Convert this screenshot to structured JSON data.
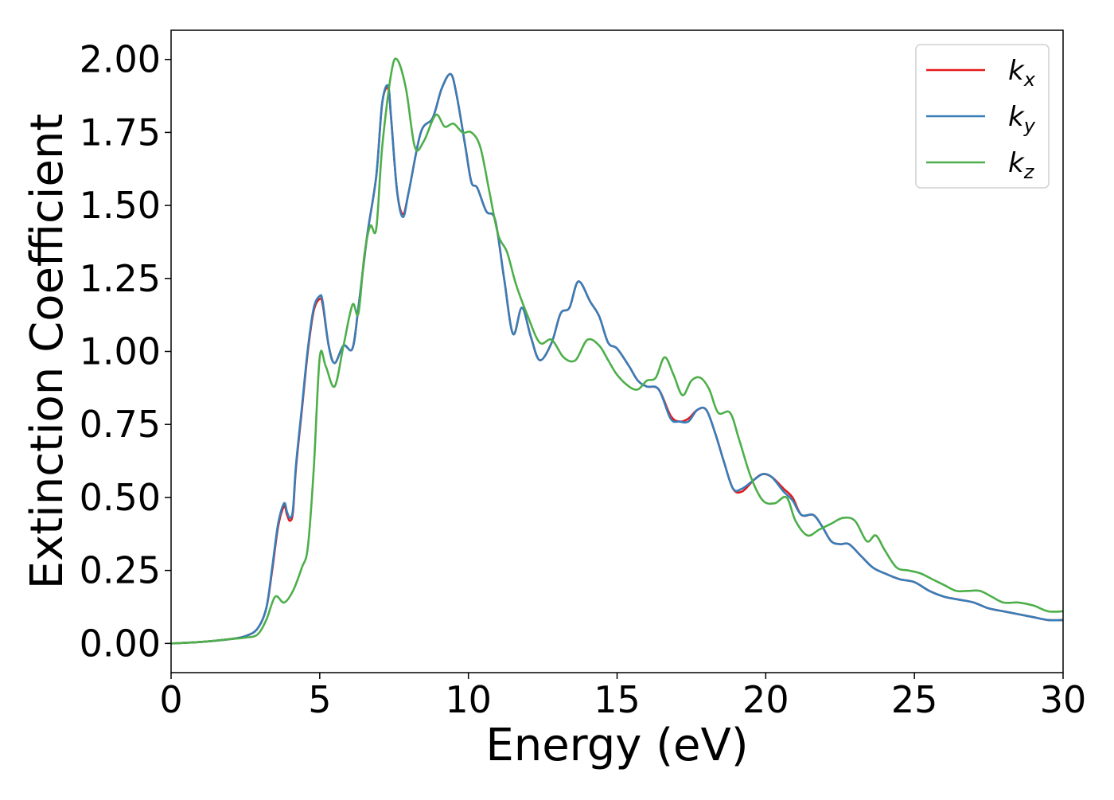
{
  "chart_data": {
    "type": "line",
    "title": "",
    "xlabel": "Energy (eV)",
    "ylabel": "Extinction Coefficient",
    "xlim": [
      0,
      30
    ],
    "ylim": [
      -0.1,
      2.1
    ],
    "xticks": [
      0,
      5,
      10,
      15,
      20,
      25,
      30
    ],
    "xtick_labels": [
      "0",
      "5",
      "10",
      "15",
      "20",
      "25",
      "30"
    ],
    "yticks": [
      0.0,
      0.25,
      0.5,
      0.75,
      1.0,
      1.25,
      1.5,
      1.75,
      2.0
    ],
    "ytick_labels": [
      "0.00",
      "0.25",
      "0.50",
      "0.75",
      "1.00",
      "1.25",
      "1.50",
      "1.75",
      "2.00"
    ],
    "grid": false,
    "legend_position": "top-right",
    "series": [
      {
        "name": "kx",
        "label_base": "k",
        "label_sub": "x",
        "color": "#e41a1c",
        "x": [
          0,
          1,
          2,
          2.5,
          2.9,
          3.2,
          3.4,
          3.6,
          3.8,
          3.9,
          4.0,
          4.1,
          4.2,
          4.4,
          4.6,
          4.8,
          5.0,
          5.1,
          5.3,
          5.5,
          5.8,
          6.1,
          6.3,
          6.6,
          6.9,
          7.1,
          7.3,
          7.4,
          7.6,
          7.8,
          8.0,
          8.4,
          8.8,
          9.1,
          9.4,
          9.6,
          9.9,
          10.1,
          10.3,
          10.6,
          10.9,
          11.2,
          11.5,
          11.8,
          12.1,
          12.4,
          12.8,
          13.1,
          13.4,
          13.7,
          14.1,
          14.4,
          14.7,
          15.0,
          15.4,
          15.7,
          16.0,
          16.4,
          16.8,
          17.1,
          17.4,
          17.7,
          18.0,
          18.3,
          18.6,
          18.9,
          19.2,
          19.6,
          19.9,
          20.2,
          20.6,
          20.9,
          21.2,
          21.6,
          21.9,
          22.2,
          22.5,
          22.8,
          23.2,
          23.6,
          24.0,
          24.5,
          25.0,
          25.5,
          26.0,
          26.5,
          27.0,
          27.5,
          28.0,
          28.5,
          29.0,
          29.5,
          30.0
        ],
        "values": [
          0,
          0.005,
          0.015,
          0.025,
          0.05,
          0.12,
          0.25,
          0.4,
          0.47,
          0.44,
          0.42,
          0.45,
          0.6,
          0.8,
          1.0,
          1.14,
          1.18,
          1.16,
          1.02,
          0.96,
          1.02,
          1.01,
          1.15,
          1.4,
          1.6,
          1.85,
          1.9,
          1.8,
          1.55,
          1.47,
          1.55,
          1.75,
          1.8,
          1.9,
          1.95,
          1.88,
          1.7,
          1.58,
          1.56,
          1.48,
          1.45,
          1.25,
          1.06,
          1.15,
          1.05,
          0.97,
          1.03,
          1.13,
          1.15,
          1.24,
          1.17,
          1.12,
          1.03,
          1.01,
          0.95,
          0.9,
          0.88,
          0.87,
          0.78,
          0.76,
          0.77,
          0.8,
          0.8,
          0.72,
          0.62,
          0.53,
          0.52,
          0.56,
          0.58,
          0.57,
          0.53,
          0.5,
          0.44,
          0.44,
          0.4,
          0.35,
          0.34,
          0.34,
          0.3,
          0.26,
          0.24,
          0.22,
          0.21,
          0.18,
          0.16,
          0.15,
          0.14,
          0.12,
          0.11,
          0.1,
          0.09,
          0.08,
          0.08
        ]
      },
      {
        "name": "ky",
        "label_base": "k",
        "label_sub": "y",
        "color": "#377eb8",
        "x": [
          0,
          1,
          2,
          2.5,
          2.9,
          3.2,
          3.4,
          3.6,
          3.8,
          3.9,
          4.0,
          4.1,
          4.2,
          4.4,
          4.6,
          4.8,
          5.0,
          5.1,
          5.3,
          5.5,
          5.8,
          6.1,
          6.3,
          6.6,
          6.9,
          7.1,
          7.3,
          7.4,
          7.6,
          7.8,
          8.0,
          8.4,
          8.8,
          9.1,
          9.4,
          9.6,
          9.9,
          10.1,
          10.3,
          10.6,
          10.9,
          11.2,
          11.5,
          11.8,
          12.1,
          12.4,
          12.8,
          13.1,
          13.4,
          13.7,
          14.1,
          14.4,
          14.7,
          15.0,
          15.4,
          15.7,
          16.0,
          16.4,
          16.8,
          17.1,
          17.4,
          17.7,
          18.0,
          18.3,
          18.6,
          18.9,
          19.2,
          19.6,
          19.9,
          20.2,
          20.6,
          20.9,
          21.2,
          21.6,
          21.9,
          22.2,
          22.5,
          22.8,
          23.2,
          23.6,
          24.0,
          24.5,
          25.0,
          25.5,
          26.0,
          26.5,
          27.0,
          27.5,
          28.0,
          28.5,
          29.0,
          29.5,
          30.0
        ],
        "values": [
          0,
          0.005,
          0.015,
          0.025,
          0.05,
          0.12,
          0.26,
          0.41,
          0.48,
          0.45,
          0.43,
          0.46,
          0.61,
          0.81,
          1.01,
          1.15,
          1.19,
          1.17,
          1.02,
          0.96,
          1.02,
          1.01,
          1.15,
          1.4,
          1.6,
          1.85,
          1.91,
          1.8,
          1.55,
          1.46,
          1.55,
          1.75,
          1.8,
          1.9,
          1.95,
          1.88,
          1.7,
          1.58,
          1.56,
          1.48,
          1.45,
          1.25,
          1.06,
          1.15,
          1.05,
          0.97,
          1.03,
          1.13,
          1.15,
          1.24,
          1.17,
          1.12,
          1.03,
          1.01,
          0.95,
          0.9,
          0.88,
          0.87,
          0.77,
          0.76,
          0.76,
          0.8,
          0.8,
          0.72,
          0.62,
          0.53,
          0.53,
          0.56,
          0.58,
          0.57,
          0.52,
          0.49,
          0.44,
          0.44,
          0.4,
          0.35,
          0.34,
          0.34,
          0.3,
          0.26,
          0.24,
          0.22,
          0.21,
          0.18,
          0.16,
          0.15,
          0.14,
          0.12,
          0.11,
          0.1,
          0.09,
          0.08,
          0.08
        ]
      },
      {
        "name": "kz",
        "label_base": "k",
        "label_sub": "z",
        "color": "#4daf4a",
        "x": [
          0,
          1,
          2,
          2.5,
          2.9,
          3.2,
          3.5,
          3.8,
          4.1,
          4.4,
          4.6,
          4.8,
          5.0,
          5.2,
          5.5,
          5.8,
          6.1,
          6.3,
          6.5,
          6.7,
          6.9,
          7.1,
          7.4,
          7.6,
          7.9,
          8.2,
          8.5,
          8.9,
          9.2,
          9.5,
          9.8,
          10.1,
          10.4,
          10.7,
          11.0,
          11.3,
          11.6,
          12.0,
          12.4,
          12.8,
          13.2,
          13.6,
          14.0,
          14.4,
          14.7,
          15.0,
          15.4,
          15.7,
          16.0,
          16.3,
          16.6,
          16.9,
          17.2,
          17.5,
          17.8,
          18.1,
          18.4,
          18.8,
          19.1,
          19.5,
          19.9,
          20.3,
          20.7,
          21.0,
          21.4,
          21.8,
          22.2,
          22.6,
          23.0,
          23.4,
          23.7,
          24.0,
          24.4,
          24.8,
          25.2,
          25.6,
          26.0,
          26.4,
          26.8,
          27.2,
          27.6,
          28.0,
          28.5,
          29.0,
          29.5,
          30.0
        ],
        "values": [
          0,
          0.005,
          0.015,
          0.02,
          0.03,
          0.08,
          0.16,
          0.14,
          0.18,
          0.26,
          0.33,
          0.6,
          0.98,
          0.95,
          0.88,
          1.02,
          1.16,
          1.13,
          1.33,
          1.43,
          1.42,
          1.7,
          1.95,
          2.0,
          1.9,
          1.7,
          1.72,
          1.81,
          1.77,
          1.78,
          1.75,
          1.75,
          1.7,
          1.55,
          1.4,
          1.34,
          1.23,
          1.12,
          1.03,
          1.04,
          0.98,
          0.97,
          1.04,
          1.02,
          0.97,
          0.92,
          0.88,
          0.87,
          0.9,
          0.91,
          0.98,
          0.92,
          0.85,
          0.9,
          0.91,
          0.87,
          0.79,
          0.79,
          0.7,
          0.57,
          0.49,
          0.48,
          0.5,
          0.42,
          0.37,
          0.39,
          0.41,
          0.43,
          0.42,
          0.35,
          0.37,
          0.32,
          0.26,
          0.25,
          0.24,
          0.22,
          0.2,
          0.18,
          0.18,
          0.18,
          0.16,
          0.14,
          0.14,
          0.13,
          0.11,
          0.11
        ]
      }
    ]
  }
}
